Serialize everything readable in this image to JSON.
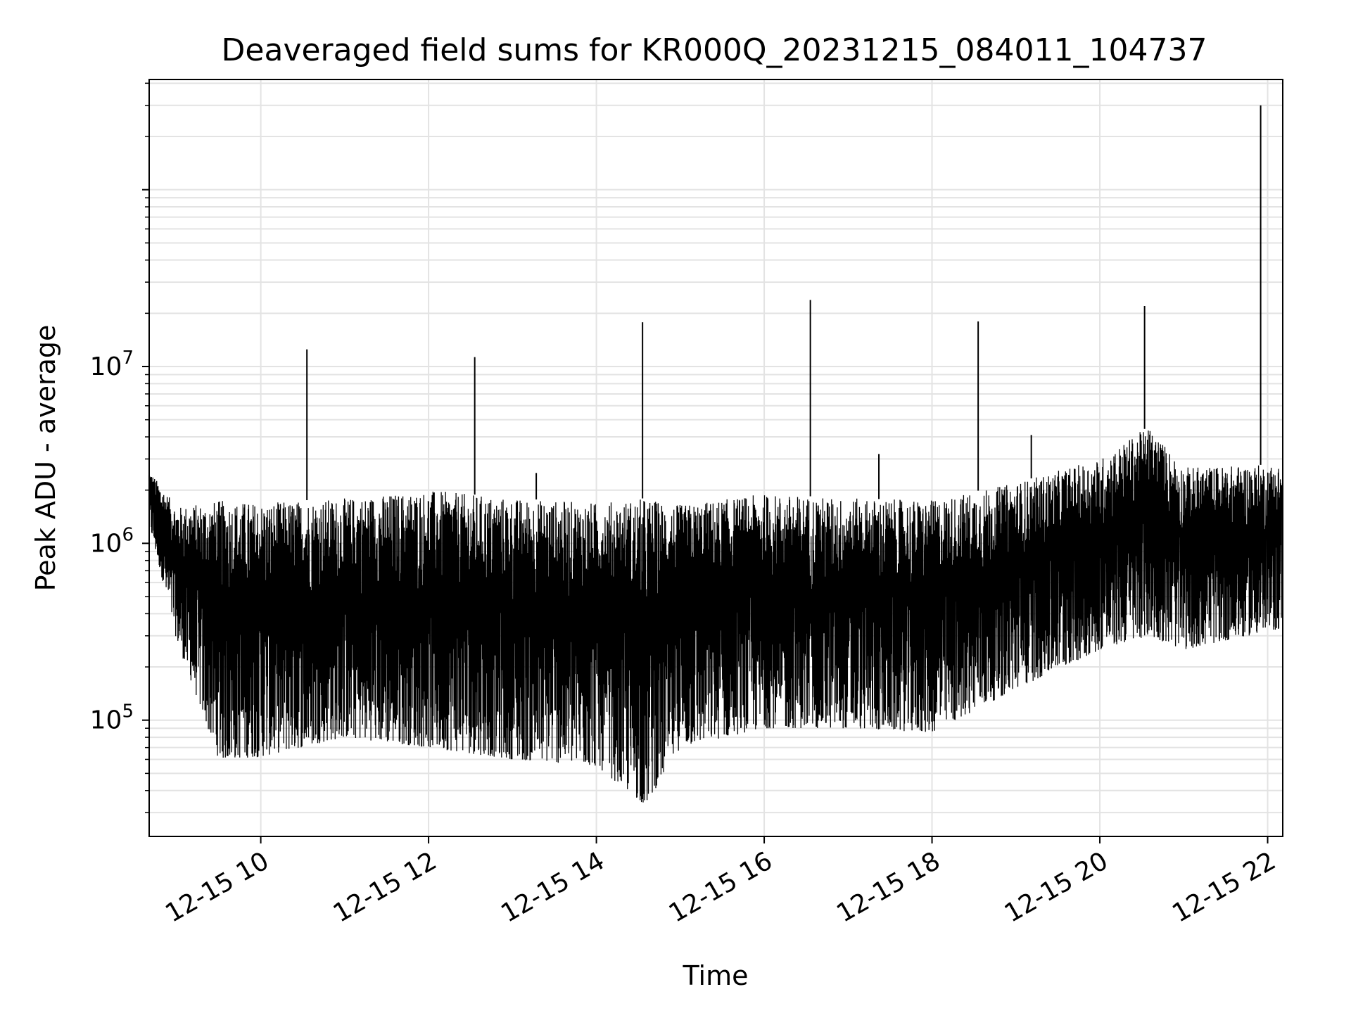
{
  "chart_data": {
    "type": "line",
    "title": "Deaveraged field sums for KR000Q_20231215_084011_104737",
    "xlabel": "Time",
    "ylabel": "Peak ADU - average",
    "x_ticks": [
      "12-15 10",
      "12-15 12",
      "12-15 14",
      "12-15 16",
      "12-15 18",
      "12-15 20",
      "12-15 22"
    ],
    "x_tick_hours": [
      10,
      12,
      14,
      16,
      18,
      20,
      22
    ],
    "xlim_hours": [
      8.67,
      22.18
    ],
    "y_scale": "log",
    "ylim": [
      22000,
      420000000
    ],
    "y_ticks": [
      {
        "base": "10",
        "exp": "5",
        "value": 100000
      },
      {
        "base": "10",
        "exp": "6",
        "value": 1000000
      },
      {
        "base": "10",
        "exp": "7",
        "value": 10000000
      }
    ],
    "grid": true,
    "line_color": "#000000",
    "spikes": [
      {
        "x": "2023-12-15 10:33",
        "y": 12500000
      },
      {
        "x": "2023-12-15 12:33",
        "y": 11300000
      },
      {
        "x": "2023-12-15 13:17",
        "y": 2500000
      },
      {
        "x": "2023-12-15 14:33",
        "y": 17800000
      },
      {
        "x": "2023-12-15 16:33",
        "y": 23800000
      },
      {
        "x": "2023-12-15 17:22",
        "y": 3200000
      },
      {
        "x": "2023-12-15 18:33",
        "y": 18000000
      },
      {
        "x": "2023-12-15 19:11",
        "y": 4100000
      },
      {
        "x": "2023-12-15 20:32",
        "y": 22000000
      },
      {
        "x": "2023-12-15 21:55",
        "y": 300000000
      }
    ],
    "envelope": [
      {
        "x": "2023-12-15 08:40",
        "low": 1300000,
        "high": 2600000
      },
      {
        "x": "2023-12-15 09:00",
        "low": 280000,
        "high": 1600000
      },
      {
        "x": "2023-12-15 09:30",
        "low": 60000,
        "high": 1750000
      },
      {
        "x": "2023-12-15 10:00",
        "low": 62000,
        "high": 1700000
      },
      {
        "x": "2023-12-15 11:00",
        "low": 80000,
        "high": 1800000
      },
      {
        "x": "2023-12-15 12:00",
        "low": 70000,
        "high": 2000000
      },
      {
        "x": "2023-12-15 13:00",
        "low": 60000,
        "high": 1800000
      },
      {
        "x": "2023-12-15 14:00",
        "low": 55000,
        "high": 1700000
      },
      {
        "x": "2023-12-15 14:35",
        "low": 33000,
        "high": 1800000
      },
      {
        "x": "2023-12-15 15:00",
        "low": 70000,
        "high": 1650000
      },
      {
        "x": "2023-12-15 16:00",
        "low": 90000,
        "high": 1900000
      },
      {
        "x": "2023-12-15 17:00",
        "low": 90000,
        "high": 1800000
      },
      {
        "x": "2023-12-15 18:00",
        "low": 85000,
        "high": 1750000
      },
      {
        "x": "2023-12-15 19:00",
        "low": 150000,
        "high": 2200000
      },
      {
        "x": "2023-12-15 20:00",
        "low": 250000,
        "high": 3000000
      },
      {
        "x": "2023-12-15 20:35",
        "low": 300000,
        "high": 4600000
      },
      {
        "x": "2023-12-15 21:00",
        "low": 250000,
        "high": 2700000
      },
      {
        "x": "2023-12-15 22:10",
        "low": 330000,
        "high": 2800000
      }
    ]
  }
}
